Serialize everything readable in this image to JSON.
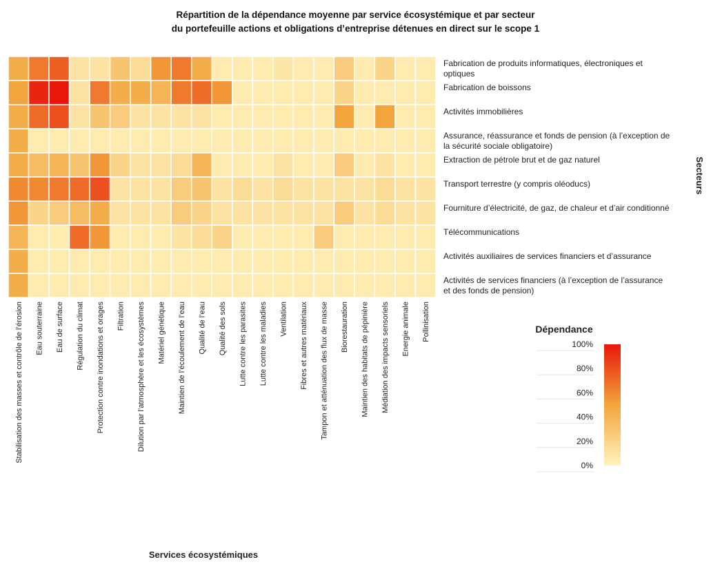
{
  "chart_data": {
    "type": "heatmap",
    "title": "Répartition de la dépendance moyenne par service écosystémique et par secteur\ndu portefeuille actions et obligations d’entreprise détenues en direct sur le scope 1",
    "x_label": "Services écosystémiques",
    "y_label": "Secteurs",
    "legend_title": "Dépendance",
    "x": [
      "Stabilisation des masses et contrôle de l’érosion",
      "Eau souterraine",
      "Eau de surface",
      "Régulation du climat",
      "Protection contre inondations et orages",
      "Filtration",
      "Dilution par l’atmosphère et les écosystèmes",
      "Matériel génétique",
      "Maintien de l’écoulement de l’eau",
      "Qualité de l’eau",
      "Qualité des sols",
      "Lutte contre les parasites",
      "Lutte contre les maladies",
      "Ventilation",
      "Fibres et autres matériaux",
      "Tampon et atténuation des flux de masse",
      "Biorestauration",
      "Maintien des habitats de pépinière",
      "Médiation des impacts sensoriels",
      "Energie animale",
      "Pollinisation"
    ],
    "y": [
      "Fabrication de produits informatiques, électroniques et optiques",
      "Fabrication de boissons",
      "Activités immobilières",
      "Assurance, réassurance et fonds de pension (à l’exception de la sécurité sociale obligatoire)",
      "Extraction de pétrole brut et de gaz naturel",
      "Transport terrestre (y compris oléoducs)",
      "Fourniture d’électricité, de gaz, de chaleur et d’air conditionné",
      "Télécommunications",
      "Activités auxiliaires de services financiers et d’assurance",
      "Activités de services financiers (à l’exception de l’assurance et des fonds de pension)"
    ],
    "values": [
      [
        45,
        65,
        75,
        10,
        10,
        30,
        15,
        55,
        65,
        45,
        5,
        5,
        5,
        8,
        5,
        5,
        25,
        5,
        20,
        5,
        5
      ],
      [
        50,
        95,
        100,
        10,
        65,
        45,
        45,
        40,
        65,
        70,
        55,
        5,
        5,
        5,
        5,
        5,
        20,
        5,
        5,
        5,
        5
      ],
      [
        45,
        70,
        80,
        10,
        30,
        25,
        10,
        10,
        10,
        10,
        5,
        5,
        5,
        5,
        5,
        5,
        50,
        5,
        50,
        5,
        5
      ],
      [
        45,
        5,
        5,
        5,
        5,
        5,
        5,
        5,
        5,
        5,
        5,
        5,
        5,
        5,
        5,
        5,
        5,
        5,
        5,
        5,
        5
      ],
      [
        45,
        35,
        40,
        30,
        55,
        20,
        10,
        10,
        15,
        40,
        5,
        5,
        5,
        10,
        5,
        5,
        25,
        5,
        10,
        5,
        5
      ],
      [
        60,
        60,
        65,
        70,
        80,
        10,
        10,
        10,
        25,
        30,
        10,
        15,
        10,
        15,
        10,
        10,
        10,
        10,
        15,
        10,
        10
      ],
      [
        55,
        20,
        25,
        35,
        45,
        10,
        10,
        10,
        25,
        20,
        10,
        10,
        10,
        10,
        10,
        10,
        25,
        10,
        15,
        10,
        10
      ],
      [
        40,
        5,
        5,
        70,
        55,
        5,
        5,
        5,
        10,
        15,
        20,
        5,
        5,
        5,
        5,
        25,
        5,
        5,
        5,
        5,
        5
      ],
      [
        45,
        5,
        5,
        5,
        5,
        5,
        5,
        5,
        5,
        5,
        5,
        5,
        5,
        5,
        5,
        5,
        5,
        5,
        5,
        5,
        5
      ],
      [
        45,
        5,
        5,
        5,
        5,
        5,
        5,
        5,
        5,
        5,
        5,
        5,
        5,
        5,
        5,
        5,
        5,
        5,
        5,
        5,
        5
      ]
    ],
    "zlim": [
      0,
      100
    ],
    "zticks": [
      {
        "value": 0,
        "label": "0%"
      },
      {
        "value": 20,
        "label": "20%"
      },
      {
        "value": 40,
        "label": "40%"
      },
      {
        "value": 60,
        "label": "60%"
      },
      {
        "value": 80,
        "label": "80%"
      },
      {
        "value": 100,
        "label": "100%"
      }
    ],
    "colors": [
      "#fff3bd",
      "#f2a53c",
      "#e8170a"
    ]
  }
}
